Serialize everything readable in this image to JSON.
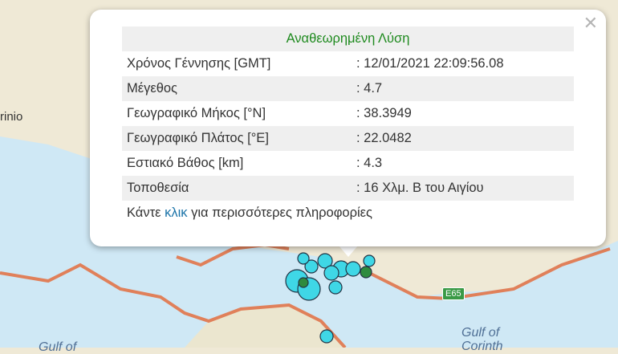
{
  "map": {
    "place_label": "rinio",
    "water_labels": [
      "Gulf of Corinth",
      "Gulf of"
    ],
    "road_shield": "E65",
    "colors": {
      "event_marker": "#3fd7e6",
      "latest_event_marker": "#2e8b3e",
      "water": "#cfe8f5",
      "land": "#efe9d6",
      "road": "#e0805a"
    }
  },
  "popup": {
    "title": "Αναθεωρημένη Λύση",
    "rows": [
      {
        "label": "Χρόνος Γέννησης [GMT]",
        "value": ": 12/01/2021 22:09:56.08"
      },
      {
        "label": "Μέγεθος",
        "value": ": 4.7"
      },
      {
        "label": "Γεωγραφικό Μήκος [°N]",
        "value": ": 38.3949"
      },
      {
        "label": "Γεωγραφικό Πλάτος [°E]",
        "value": ": 22.0482"
      },
      {
        "label": "Εστιακό Βάθος [km]",
        "value": ": 4.3"
      },
      {
        "label": "Τοποθεσία",
        "value": ": 16 Χλμ. Β του Αιγίου"
      }
    ],
    "footer_pre": "Κάντε ",
    "footer_link": "κλικ",
    "footer_post": " για περισσότερες πληροφορίες",
    "close_icon": "close-icon"
  }
}
